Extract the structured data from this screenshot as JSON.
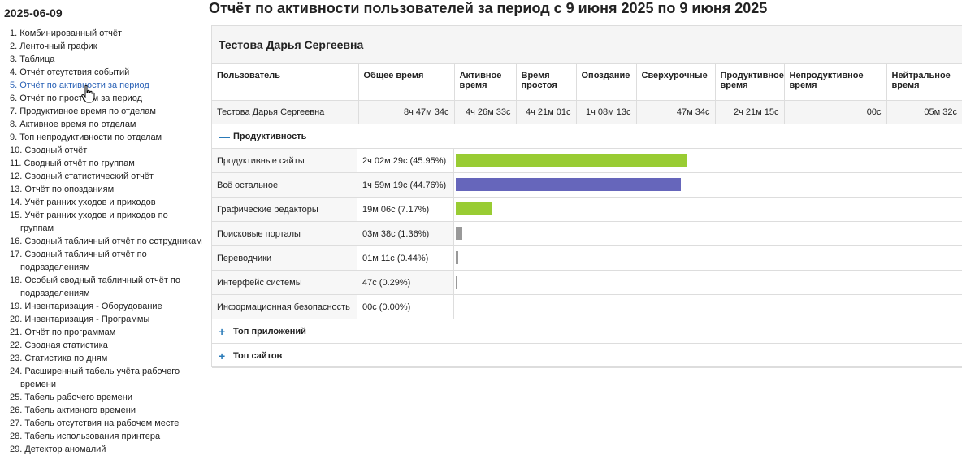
{
  "sidebar": {
    "date": "2025-06-09",
    "items": [
      "1. Комбинированный отчёт",
      "2. Ленточный график",
      "3. Таблица",
      "4. Отчёт отсутствия событий",
      "5. Отчёт по активности за период",
      "6. Отчёт по простоям за период",
      "7. Продуктивное время по отделам",
      "8. Активное время по отделам",
      "9. Топ непродуктивности по отделам",
      "10. Сводный отчёт",
      "11. Сводный отчёт по группам",
      "12. Сводный статистический отчёт",
      "13. Отчёт по опозданиям",
      "14. Учёт ранних уходов и приходов",
      "15. Учёт ранних уходов и приходов по группам",
      "16. Сводный табличный отчёт по сотрудникам",
      "17. Сводный табличный отчёт по подразделениям",
      "18. Особый сводный табличный отчёт по подразделениям",
      "19. Инвентаризация - Оборудование",
      "20. Инвентаризация - Программы",
      "21. Отчёт по программам",
      "22. Сводная статистика",
      "23. Статистика по дням",
      "24. Расширенный табель учёта рабочего времени",
      "25. Табель рабочего времени",
      "26. Табель активного времени",
      "27. Табель отсутствия на рабочем месте",
      "28. Табель использования принтера",
      "29. Детектор аномалий"
    ],
    "active_index": 4
  },
  "title": "Отчёт по активности пользователей за период с 9 июня 2025 по 9 июня 2025",
  "panel": {
    "user_name": "Тестова Дарья Сергеевна",
    "columns": [
      "Пользователь",
      "Общее время",
      "Активное время",
      "Время простоя",
      "Опоздание",
      "Сверхурочные",
      "Продуктивное время",
      "Непродуктивное время",
      "Нейтральное время"
    ],
    "row": [
      "Тестова Дарья Сергеевна",
      "8ч 47м 34с",
      "4ч 26м 33с",
      "4ч 21м 01с",
      "1ч 08м 13с",
      "47м 34с",
      "2ч 21м 15с",
      "00с",
      "05м 32с"
    ]
  },
  "productivity": {
    "header": "Продуктивность",
    "sign": "—",
    "items": [
      {
        "name": "Продуктивные сайты",
        "value": "2ч 02м 29с (45.95%)",
        "fraction": 0.4595,
        "color": "#99cc33"
      },
      {
        "name": "Всё остальное",
        "value": "1ч 59м 19с (44.76%)",
        "fraction": 0.4476,
        "color": "#6666bb"
      },
      {
        "name": "Графические редакторы",
        "value": "19м 06с (7.17%)",
        "fraction": 0.0717,
        "color": "#99cc33"
      },
      {
        "name": "Поисковые порталы",
        "value": "03м 38с (1.36%)",
        "fraction": 0.0136,
        "color": "#999999"
      },
      {
        "name": "Переводчики",
        "value": "01м 11с (0.44%)",
        "fraction": 0.0044,
        "color": "#999999"
      },
      {
        "name": "Интерфейс системы",
        "value": "47с (0.29%)",
        "fraction": 0.0029,
        "color": "#999999"
      },
      {
        "name": "Информационная безопасность",
        "value": "00с (0.00%)",
        "fraction": 0.0,
        "color": "#999999"
      }
    ]
  },
  "sections": [
    {
      "sign": "+",
      "label": "Топ приложений"
    },
    {
      "sign": "+",
      "label": "Топ сайтов"
    }
  ]
}
